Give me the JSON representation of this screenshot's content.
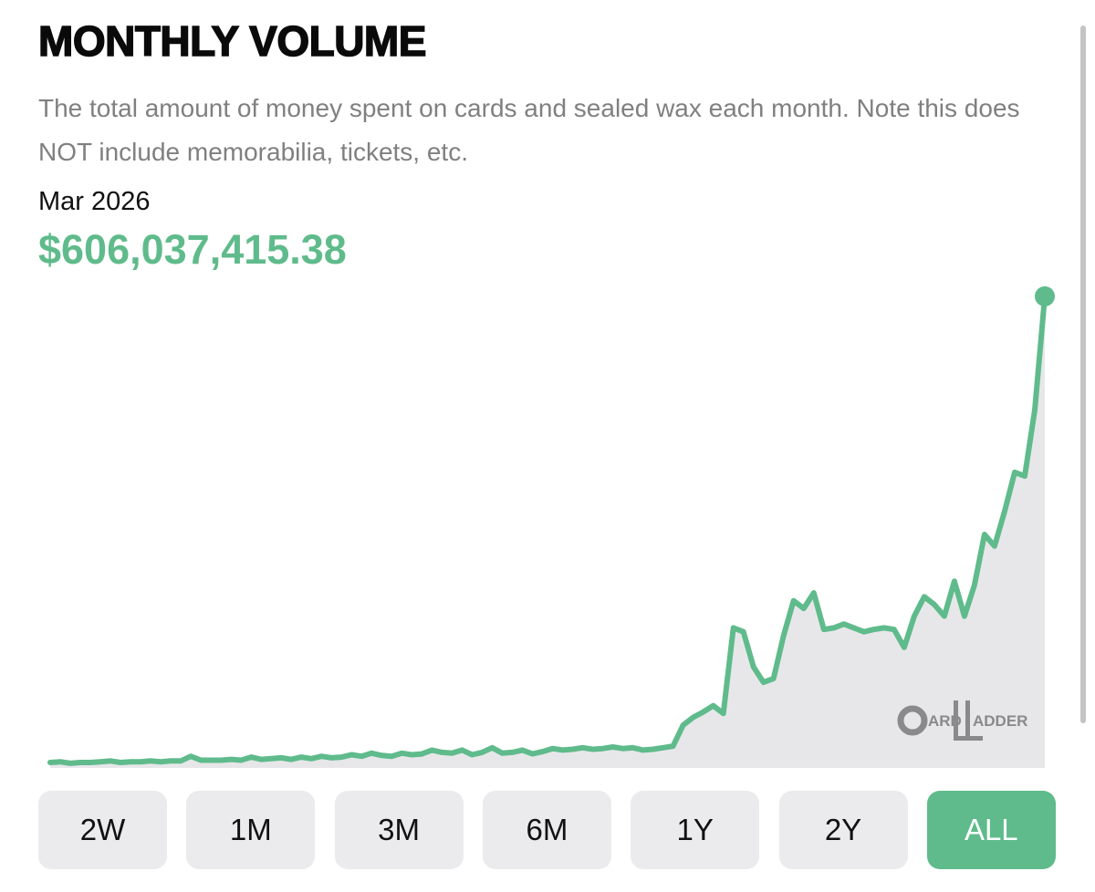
{
  "header": {
    "title": "MONTHLY VOLUME",
    "description": "The total amount of money spent on cards and sealed wax each month. Note this does NOT include memorabilia, tickets, etc."
  },
  "readout": {
    "date": "Mar 2026",
    "value": "$606,037,415.38"
  },
  "chart_data": {
    "type": "line",
    "color": "#5fbb8b",
    "area_color": "#e7e7ea",
    "ylim": [
      0,
      620000000
    ],
    "values": [
      7000000,
      8000000,
      6000000,
      7000000,
      7000000,
      8000000,
      9000000,
      7000000,
      8000000,
      8000000,
      9000000,
      8000000,
      9000000,
      9000000,
      15000000,
      10000000,
      10000000,
      10000000,
      11000000,
      10000000,
      14000000,
      11000000,
      12000000,
      13000000,
      11000000,
      14000000,
      12000000,
      15000000,
      13000000,
      14000000,
      17000000,
      15000000,
      19000000,
      16000000,
      15000000,
      19000000,
      17000000,
      18000000,
      23000000,
      20000000,
      19000000,
      23000000,
      17000000,
      20000000,
      26000000,
      19000000,
      20000000,
      23000000,
      18000000,
      21000000,
      25000000,
      23000000,
      24000000,
      26000000,
      24000000,
      25000000,
      27000000,
      25000000,
      26000000,
      23000000,
      24000000,
      26000000,
      28000000,
      55000000,
      65000000,
      72000000,
      80000000,
      70000000,
      180000000,
      175000000,
      130000000,
      110000000,
      115000000,
      170000000,
      215000000,
      205000000,
      225000000,
      178000000,
      180000000,
      185000000,
      180000000,
      175000000,
      178000000,
      180000000,
      178000000,
      155000000,
      195000000,
      220000000,
      210000000,
      195000000,
      240000000,
      195000000,
      235000000,
      300000000,
      285000000,
      330000000,
      380000000,
      375000000,
      460000000,
      606037415.38
    ]
  },
  "logo": {
    "first": "ARD",
    "second": "ADDER"
  },
  "buttons": [
    {
      "label": "2W",
      "selected": false
    },
    {
      "label": "1M",
      "selected": false
    },
    {
      "label": "3M",
      "selected": false
    },
    {
      "label": "6M",
      "selected": false
    },
    {
      "label": "1Y",
      "selected": false
    },
    {
      "label": "2Y",
      "selected": false
    },
    {
      "label": "ALL",
      "selected": true
    }
  ]
}
